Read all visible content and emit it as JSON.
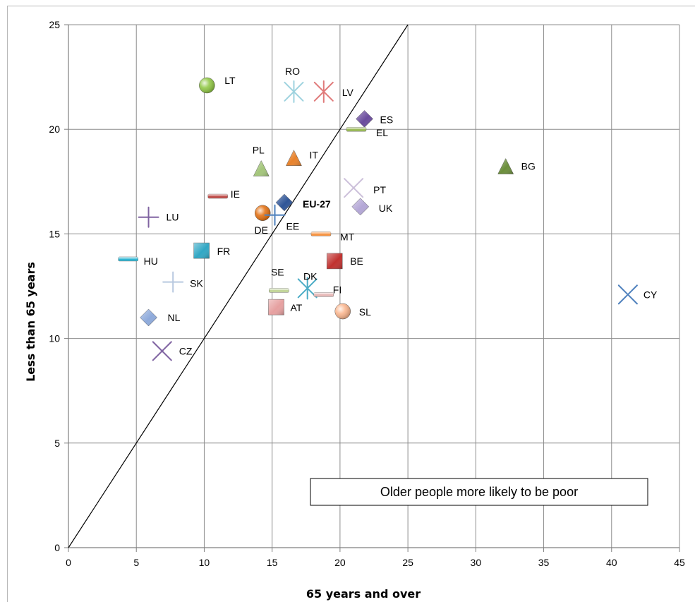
{
  "chart_data": {
    "type": "scatter",
    "xlabel": "65 years and over",
    "ylabel": "Less than 65 years",
    "xlim": [
      0,
      45
    ],
    "ylim": [
      0,
      25
    ],
    "xticks": [
      0,
      5,
      10,
      15,
      20,
      25,
      30,
      35,
      40,
      45
    ],
    "yticks": [
      0,
      5,
      10,
      15,
      20,
      25
    ],
    "grid": true,
    "reference_line": {
      "from": [
        0,
        0
      ],
      "to": [
        25,
        25
      ]
    },
    "annotation": "Older people more likely to be poor",
    "points": [
      {
        "label": "LT",
        "x": 10.2,
        "y": 22.1,
        "marker": "sphere",
        "color": "#8dc63f"
      },
      {
        "label": "RO",
        "x": 16.6,
        "y": 21.8,
        "marker": "star",
        "color": "#9fd3df"
      },
      {
        "label": "LV",
        "x": 18.8,
        "y": 21.8,
        "marker": "star",
        "color": "#e07a7a"
      },
      {
        "label": "ES",
        "x": 21.8,
        "y": 20.5,
        "marker": "diamond",
        "color": "#6a4c9c"
      },
      {
        "label": "EL",
        "x": 21.2,
        "y": 20.0,
        "marker": "dash",
        "color": "#9bbb59"
      },
      {
        "label": "PL",
        "x": 14.2,
        "y": 18.1,
        "marker": "triangle",
        "color": "#a4c67b"
      },
      {
        "label": "IT",
        "x": 16.6,
        "y": 18.6,
        "marker": "triangle",
        "color": "#e8822b"
      },
      {
        "label": "BG",
        "x": 32.2,
        "y": 18.2,
        "marker": "triangle",
        "color": "#6b8e3b"
      },
      {
        "label": "IE",
        "x": 11.0,
        "y": 16.8,
        "marker": "dash",
        "color": "#c0504d"
      },
      {
        "label": "PT",
        "x": 21.0,
        "y": 17.2,
        "marker": "x",
        "color": "#ccc0da"
      },
      {
        "label": "EU-27",
        "x": 15.9,
        "y": 16.5,
        "marker": "diamond",
        "color": "#2f5597"
      },
      {
        "label": "UK",
        "x": 21.5,
        "y": 16.3,
        "marker": "diamond",
        "color": "#b4a7d6"
      },
      {
        "label": "DE",
        "x": 14.3,
        "y": 16.0,
        "marker": "sphere",
        "color": "#e36c0a"
      },
      {
        "label": "EE",
        "x": 15.2,
        "y": 15.9,
        "marker": "plus",
        "color": "#4f81bd"
      },
      {
        "label": "LU",
        "x": 5.9,
        "y": 15.8,
        "marker": "plus",
        "color": "#8064a2"
      },
      {
        "label": "MT",
        "x": 18.6,
        "y": 15.0,
        "marker": "dash",
        "color": "#f79646"
      },
      {
        "label": "HU",
        "x": 4.4,
        "y": 13.8,
        "marker": "dash",
        "color": "#31b6d3"
      },
      {
        "label": "FR",
        "x": 9.8,
        "y": 14.2,
        "marker": "square",
        "color": "#31a7c4"
      },
      {
        "label": "BE",
        "x": 19.6,
        "y": 13.7,
        "marker": "square",
        "color": "#c0312f"
      },
      {
        "label": "SK",
        "x": 7.7,
        "y": 12.7,
        "marker": "plus",
        "color": "#b8c9e0"
      },
      {
        "label": "SE",
        "x": 15.5,
        "y": 12.3,
        "marker": "dash",
        "color": "#c3d69b"
      },
      {
        "label": "DK",
        "x": 17.6,
        "y": 12.4,
        "marker": "star",
        "color": "#4bacc6"
      },
      {
        "label": "FI",
        "x": 18.8,
        "y": 12.1,
        "marker": "dash",
        "color": "#e6b9b8"
      },
      {
        "label": "CY",
        "x": 41.2,
        "y": 12.1,
        "marker": "x",
        "color": "#4f81bd"
      },
      {
        "label": "AT",
        "x": 15.3,
        "y": 11.5,
        "marker": "square",
        "color": "#e6a0a0"
      },
      {
        "label": "SL",
        "x": 20.2,
        "y": 11.3,
        "marker": "sphere",
        "color": "#fab38a"
      },
      {
        "label": "NL",
        "x": 5.9,
        "y": 11.0,
        "marker": "diamond",
        "color": "#8eaadb"
      },
      {
        "label": "CZ",
        "x": 6.9,
        "y": 9.4,
        "marker": "x",
        "color": "#8064a2"
      }
    ]
  }
}
